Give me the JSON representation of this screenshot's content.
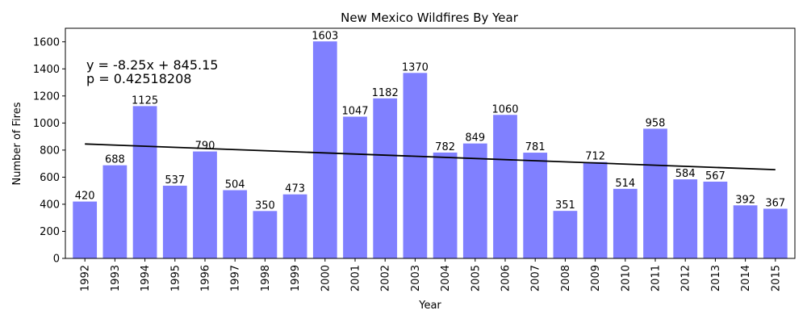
{
  "chart_data": {
    "type": "bar",
    "title": "New Mexico Wildfires By Year",
    "xlabel": "Year",
    "ylabel": "Number of Fires",
    "categories": [
      "1992",
      "1993",
      "1994",
      "1995",
      "1996",
      "1997",
      "1998",
      "1999",
      "2000",
      "2001",
      "2002",
      "2003",
      "2004",
      "2005",
      "2006",
      "2007",
      "2008",
      "2009",
      "2010",
      "2011",
      "2012",
      "2013",
      "2014",
      "2015"
    ],
    "values": [
      420,
      688,
      1125,
      537,
      790,
      504,
      350,
      473,
      1603,
      1047,
      1182,
      1370,
      782,
      849,
      1060,
      781,
      351,
      712,
      514,
      958,
      584,
      567,
      392,
      367
    ],
    "ylim": [
      0,
      1700
    ],
    "yticks": [
      0,
      200,
      400,
      600,
      800,
      1000,
      1200,
      1400,
      1600
    ],
    "bar_color": "#8080ff",
    "trendline": {
      "start_value": 845.15,
      "end_value": 655.4,
      "color": "#000000",
      "equation_label": "y = -8.25x + 845.15",
      "p_label": "p = 0.42518208"
    },
    "grid": false,
    "legend": "none"
  }
}
